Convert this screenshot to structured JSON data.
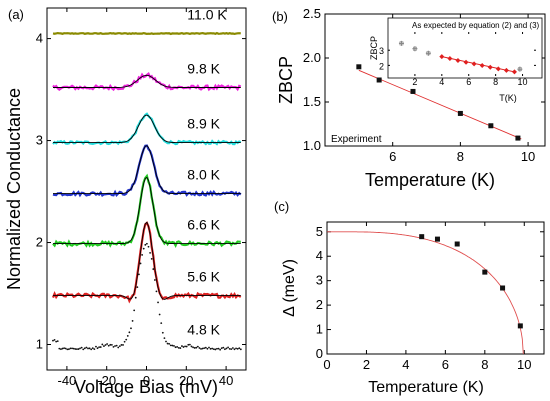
{
  "figure": {
    "panel_labels": [
      "(a)",
      "(b)",
      "(c)"
    ]
  },
  "chart_data": [
    {
      "id": "a",
      "type": "line",
      "xlabel": "Voltage Bias (mV)",
      "ylabel": "Normalized Conductance",
      "xlim": [
        -50,
        50
      ],
      "ylim": [
        0.75,
        4.3
      ],
      "xticks": [
        -40,
        -20,
        0,
        20,
        40
      ],
      "yticks": [
        1,
        2,
        3,
        4
      ],
      "fit_color": "#000000",
      "series": [
        {
          "name": "11.0 K",
          "color": "#8a8a00",
          "offset": 4.05,
          "amp": 0.0,
          "sigma": 4.0,
          "noise": 0.004,
          "fit": false
        },
        {
          "name": "9.8 K",
          "color": "#ee22dd",
          "offset": 3.52,
          "amp": 0.12,
          "sigma": 4.5,
          "noise": 0.02,
          "fit": true
        },
        {
          "name": "8.9 K",
          "color": "#22dddd",
          "offset": 2.98,
          "amp": 0.27,
          "sigma": 4.0,
          "noise": 0.015,
          "fit": true
        },
        {
          "name": "8.0 K",
          "color": "#2233cc",
          "offset": 2.48,
          "amp": 0.47,
          "sigma": 3.6,
          "noise": 0.018,
          "fit": true
        },
        {
          "name": "6.6 K",
          "color": "#22cc22",
          "offset": 1.99,
          "amp": 0.65,
          "sigma": 3.2,
          "noise": 0.02,
          "fit": true
        },
        {
          "name": "5.6 K",
          "color": "#dd2222",
          "offset": 1.48,
          "amp": 0.72,
          "sigma": 3.0,
          "noise": 0.02,
          "fit": true
        },
        {
          "name": "4.8 K",
          "color": "#111111",
          "offset": 0.96,
          "amp": 1.02,
          "sigma": 4.8,
          "noise": 0.012,
          "fit": false
        }
      ]
    },
    {
      "id": "b",
      "type": "scatter",
      "xlabel": "Temperature (K)",
      "ylabel": "ZBCP",
      "xlim": [
        4,
        10.5
      ],
      "ylim": [
        1.0,
        2.5
      ],
      "xticks": [
        6,
        8,
        10
      ],
      "yticks": [
        1.0,
        1.5,
        2.0,
        2.5
      ],
      "legend": "Experiment",
      "legend_position": "bottom-left",
      "x": [
        5.0,
        5.6,
        6.6,
        8.0,
        8.9,
        9.7
      ],
      "y": [
        1.9,
        1.75,
        1.62,
        1.37,
        1.23,
        1.09
      ],
      "fit_line": {
        "x": [
          5.0,
          9.8
        ],
        "y": [
          1.86,
          1.08
        ],
        "color": "#e03030"
      },
      "inset": {
        "title": "As expected by  equation (2) and (3)",
        "xlabel": "T(K)",
        "ylabel": "ZBCP",
        "xlim": [
          0,
          11
        ],
        "ylim": [
          1.3,
          4.2
        ],
        "xticks": [
          2,
          4,
          6,
          8,
          10
        ],
        "yticks": [
          2,
          3
        ],
        "hollow_x": [
          1.0,
          2.0,
          3.0,
          9.8
        ],
        "hollow_y": [
          3.45,
          3.1,
          2.8,
          1.75
        ],
        "hollow_color": "#888888",
        "filled_x": [
          4.0,
          4.6,
          5.2,
          5.8,
          6.4,
          7.0,
          7.6,
          8.2,
          8.8,
          9.4
        ],
        "filled_y": [
          2.58,
          2.45,
          2.32,
          2.21,
          2.1,
          1.99,
          1.88,
          1.77,
          1.67,
          1.57
        ],
        "filled_color": "#e02020"
      }
    },
    {
      "id": "c",
      "type": "scatter",
      "xlabel": "Temperature (K)",
      "ylabel": "Δ (meV)",
      "xlim": [
        0,
        11
      ],
      "ylim": [
        0,
        5.4
      ],
      "xticks": [
        0,
        2,
        4,
        6,
        8,
        10
      ],
      "yticks": [
        0,
        1,
        2,
        3,
        4,
        5
      ],
      "x": [
        4.8,
        5.6,
        6.6,
        8.0,
        8.9,
        9.8
      ],
      "y": [
        4.8,
        4.7,
        4.5,
        3.35,
        2.7,
        1.15
      ],
      "fit_curve": {
        "delta0": 5.0,
        "tc": 9.95,
        "color": "#e05050"
      }
    }
  ]
}
